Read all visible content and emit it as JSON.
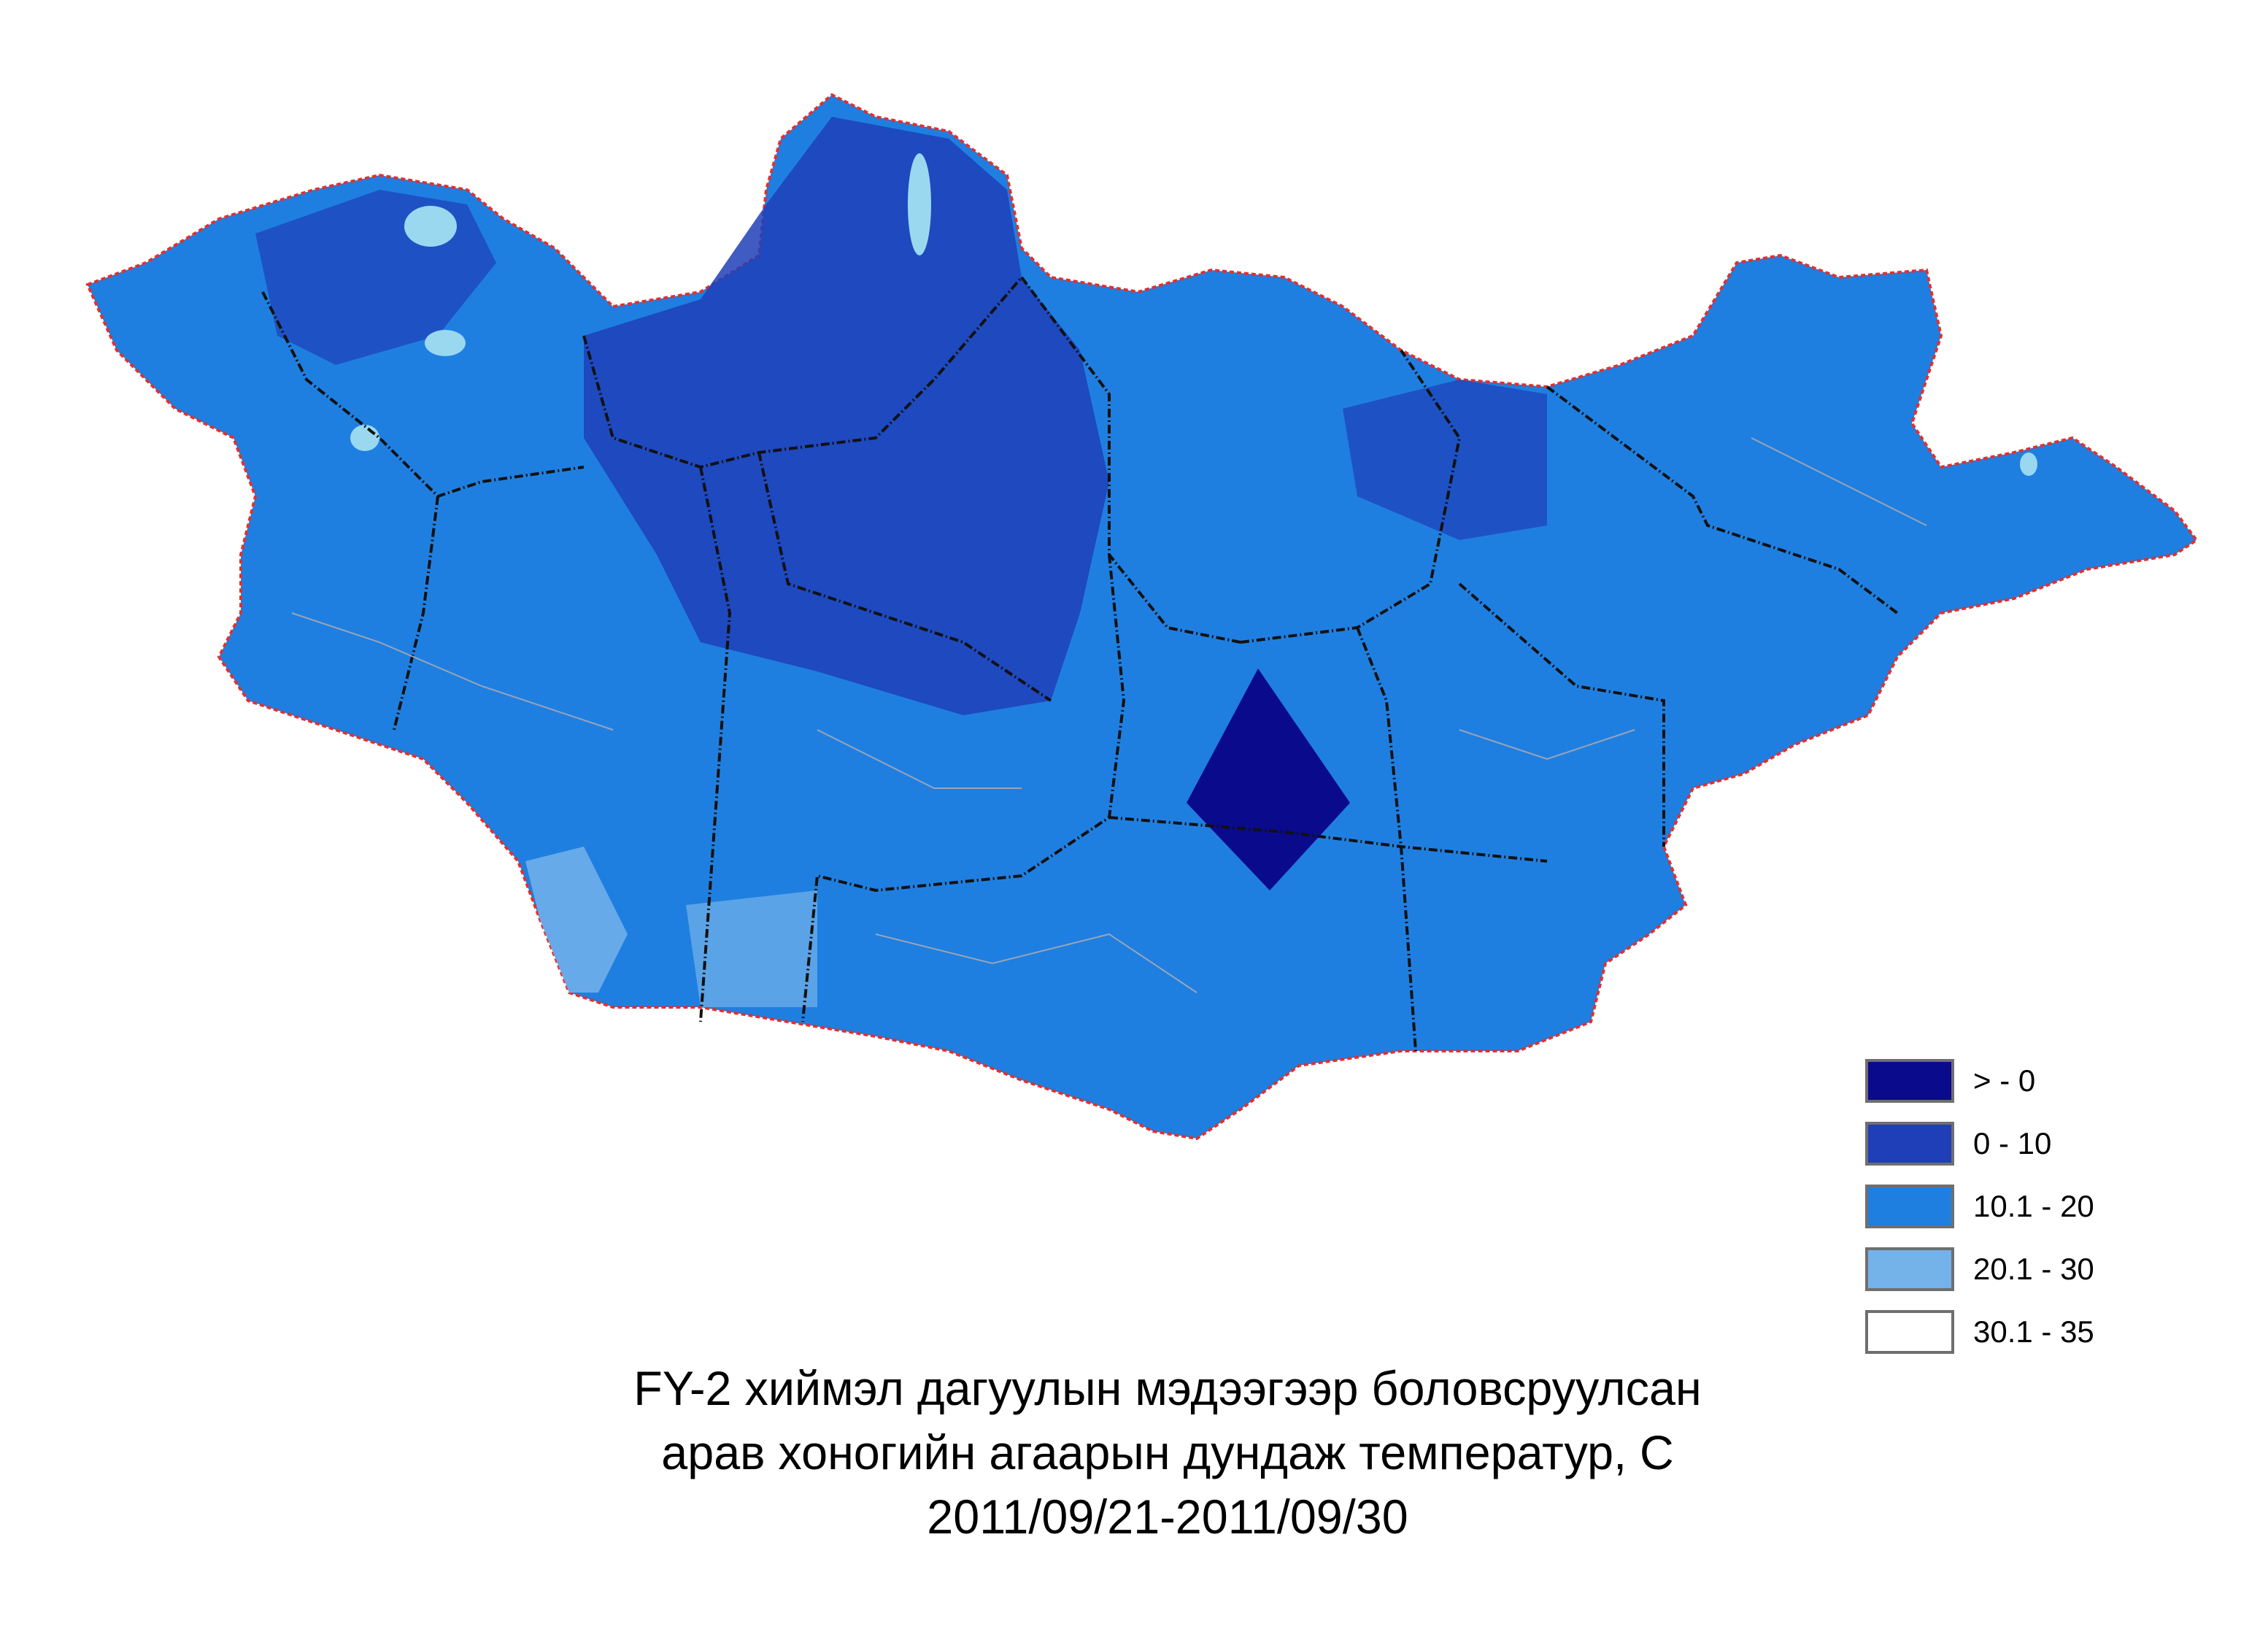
{
  "map": {
    "colors": {
      "background": "#ffffff",
      "country_border": "#e03030",
      "aimag_border": "#111111",
      "soum_border": "#9aa4b8",
      "lake": "#9ad8f0"
    }
  },
  "legend": {
    "items": [
      {
        "label": "> - 0",
        "color": "#0a0a8c"
      },
      {
        "label": "0 - 10",
        "color": "#1e3fb8"
      },
      {
        "label": "10.1 - 20",
        "color": "#1f7fe0"
      },
      {
        "label": "20.1 - 30",
        "color": "#74b2ea"
      },
      {
        "label": "30.1 - 35",
        "color": "#ffffff"
      }
    ]
  },
  "title": {
    "line1": "FY-2 хиймэл дагуулын мэдээгээр боловсруулсан",
    "line2": "арав хоногийн агаарын дундаж температур, С",
    "line3": "2011/09/21-2011/09/30"
  }
}
